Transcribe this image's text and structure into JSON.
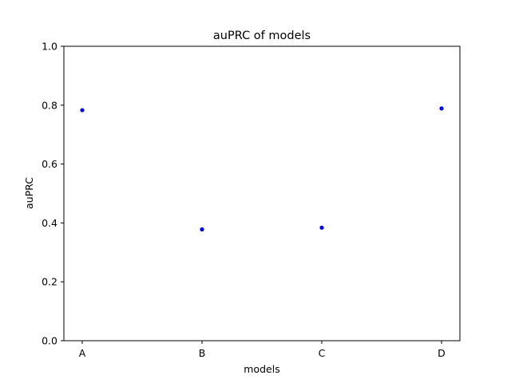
{
  "chart_data": {
    "type": "scatter",
    "title": "auPRC of models",
    "xlabel": "models",
    "ylabel": "auPRC",
    "categories": [
      "A",
      "B",
      "C",
      "D"
    ],
    "values": [
      0.783,
      0.378,
      0.384,
      0.789
    ],
    "ylim": [
      0,
      1
    ],
    "yticks": [
      "0.0",
      "0.2",
      "0.4",
      "0.6",
      "0.8",
      "1.0"
    ],
    "grid": false,
    "marker_color": "#0000ff"
  }
}
